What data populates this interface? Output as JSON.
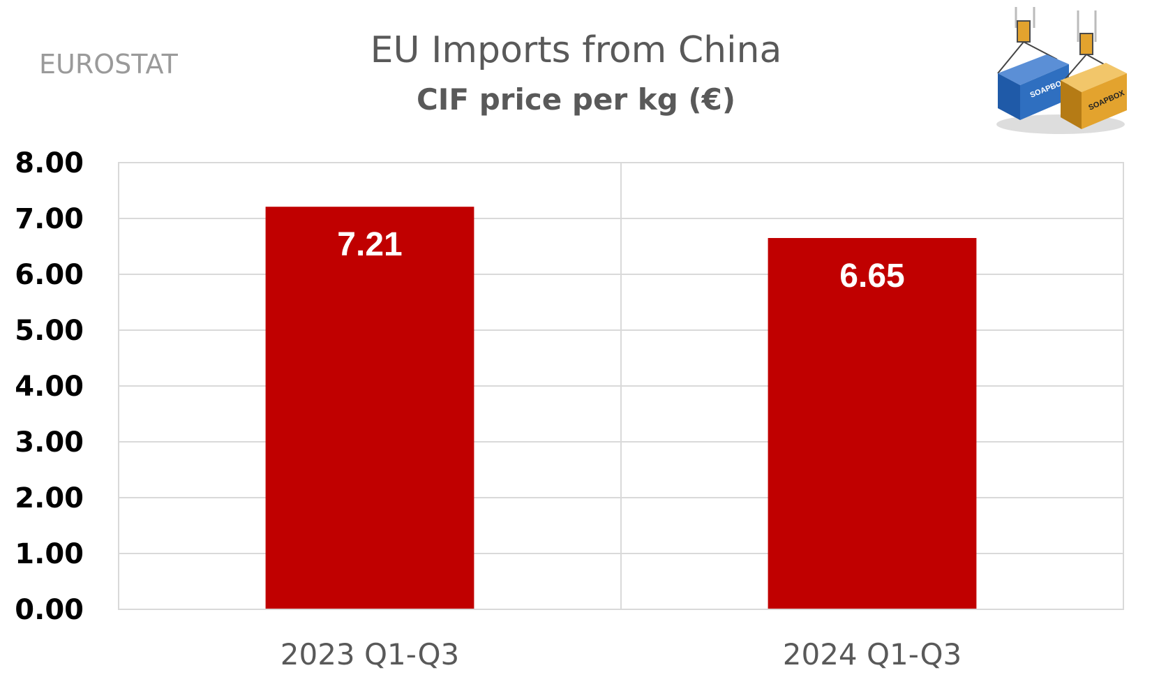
{
  "source_label": "EUROSTAT",
  "chart_data": {
    "type": "bar",
    "title": "EU Imports from China",
    "subtitle": "CIF price per kg (€)",
    "categories": [
      "2023 Q1-Q3",
      "2024 Q1-Q3"
    ],
    "values": [
      7.21,
      6.65
    ],
    "value_labels": [
      "7.21",
      "6.65"
    ],
    "ylim": [
      0,
      8
    ],
    "yticks": [
      "0.00",
      "1.00",
      "2.00",
      "3.00",
      "4.00",
      "5.00",
      "6.00",
      "7.00",
      "8.00"
    ],
    "xlabel": "",
    "ylabel": "",
    "grid": true,
    "legend": "none",
    "bar_color": "#c00000",
    "label_color": "#ffffff"
  },
  "logo": {
    "container_labels": [
      "SOAPBOX",
      "SOAPBOX"
    ],
    "colors": [
      "#2f6fc0",
      "#e3a32e"
    ]
  }
}
